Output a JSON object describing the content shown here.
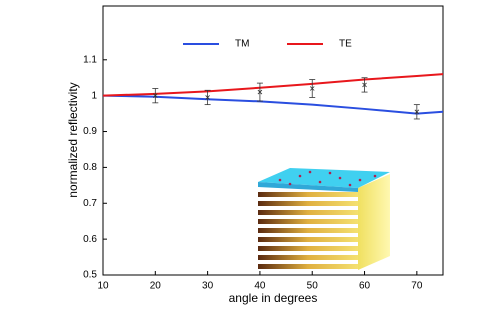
{
  "chart_data": {
    "type": "line",
    "x_label": "angle in degrees",
    "y_label": "normalized reflectivity",
    "x": [
      10,
      20,
      30,
      40,
      50,
      60,
      70,
      75
    ],
    "series": [
      {
        "name": "TM",
        "color": "#2a4ee0",
        "values": [
          1.0,
          0.997,
          0.99,
          0.984,
          0.975,
          0.963,
          0.95,
          0.955
        ]
      },
      {
        "name": "TE",
        "color": "#e8171c",
        "values": [
          1.0,
          1.005,
          1.012,
          1.022,
          1.033,
          1.045,
          1.055,
          1.06
        ]
      }
    ],
    "error_bars": {
      "x": [
        20,
        30,
        40,
        50,
        60,
        70
      ],
      "values": [
        1.0,
        0.995,
        1.01,
        1.02,
        1.03,
        0.955
      ],
      "errors": [
        0.02,
        0.02,
        0.025,
        0.025,
        0.02,
        0.02
      ]
    },
    "xlim": [
      10,
      75
    ],
    "xticks": [
      10,
      20,
      30,
      40,
      50,
      60,
      70
    ],
    "ylim": [
      0.5,
      1.25
    ],
    "yticks": [
      0.5,
      0.6,
      0.7,
      0.8,
      0.9,
      1,
      1.1
    ],
    "grid": false
  }
}
